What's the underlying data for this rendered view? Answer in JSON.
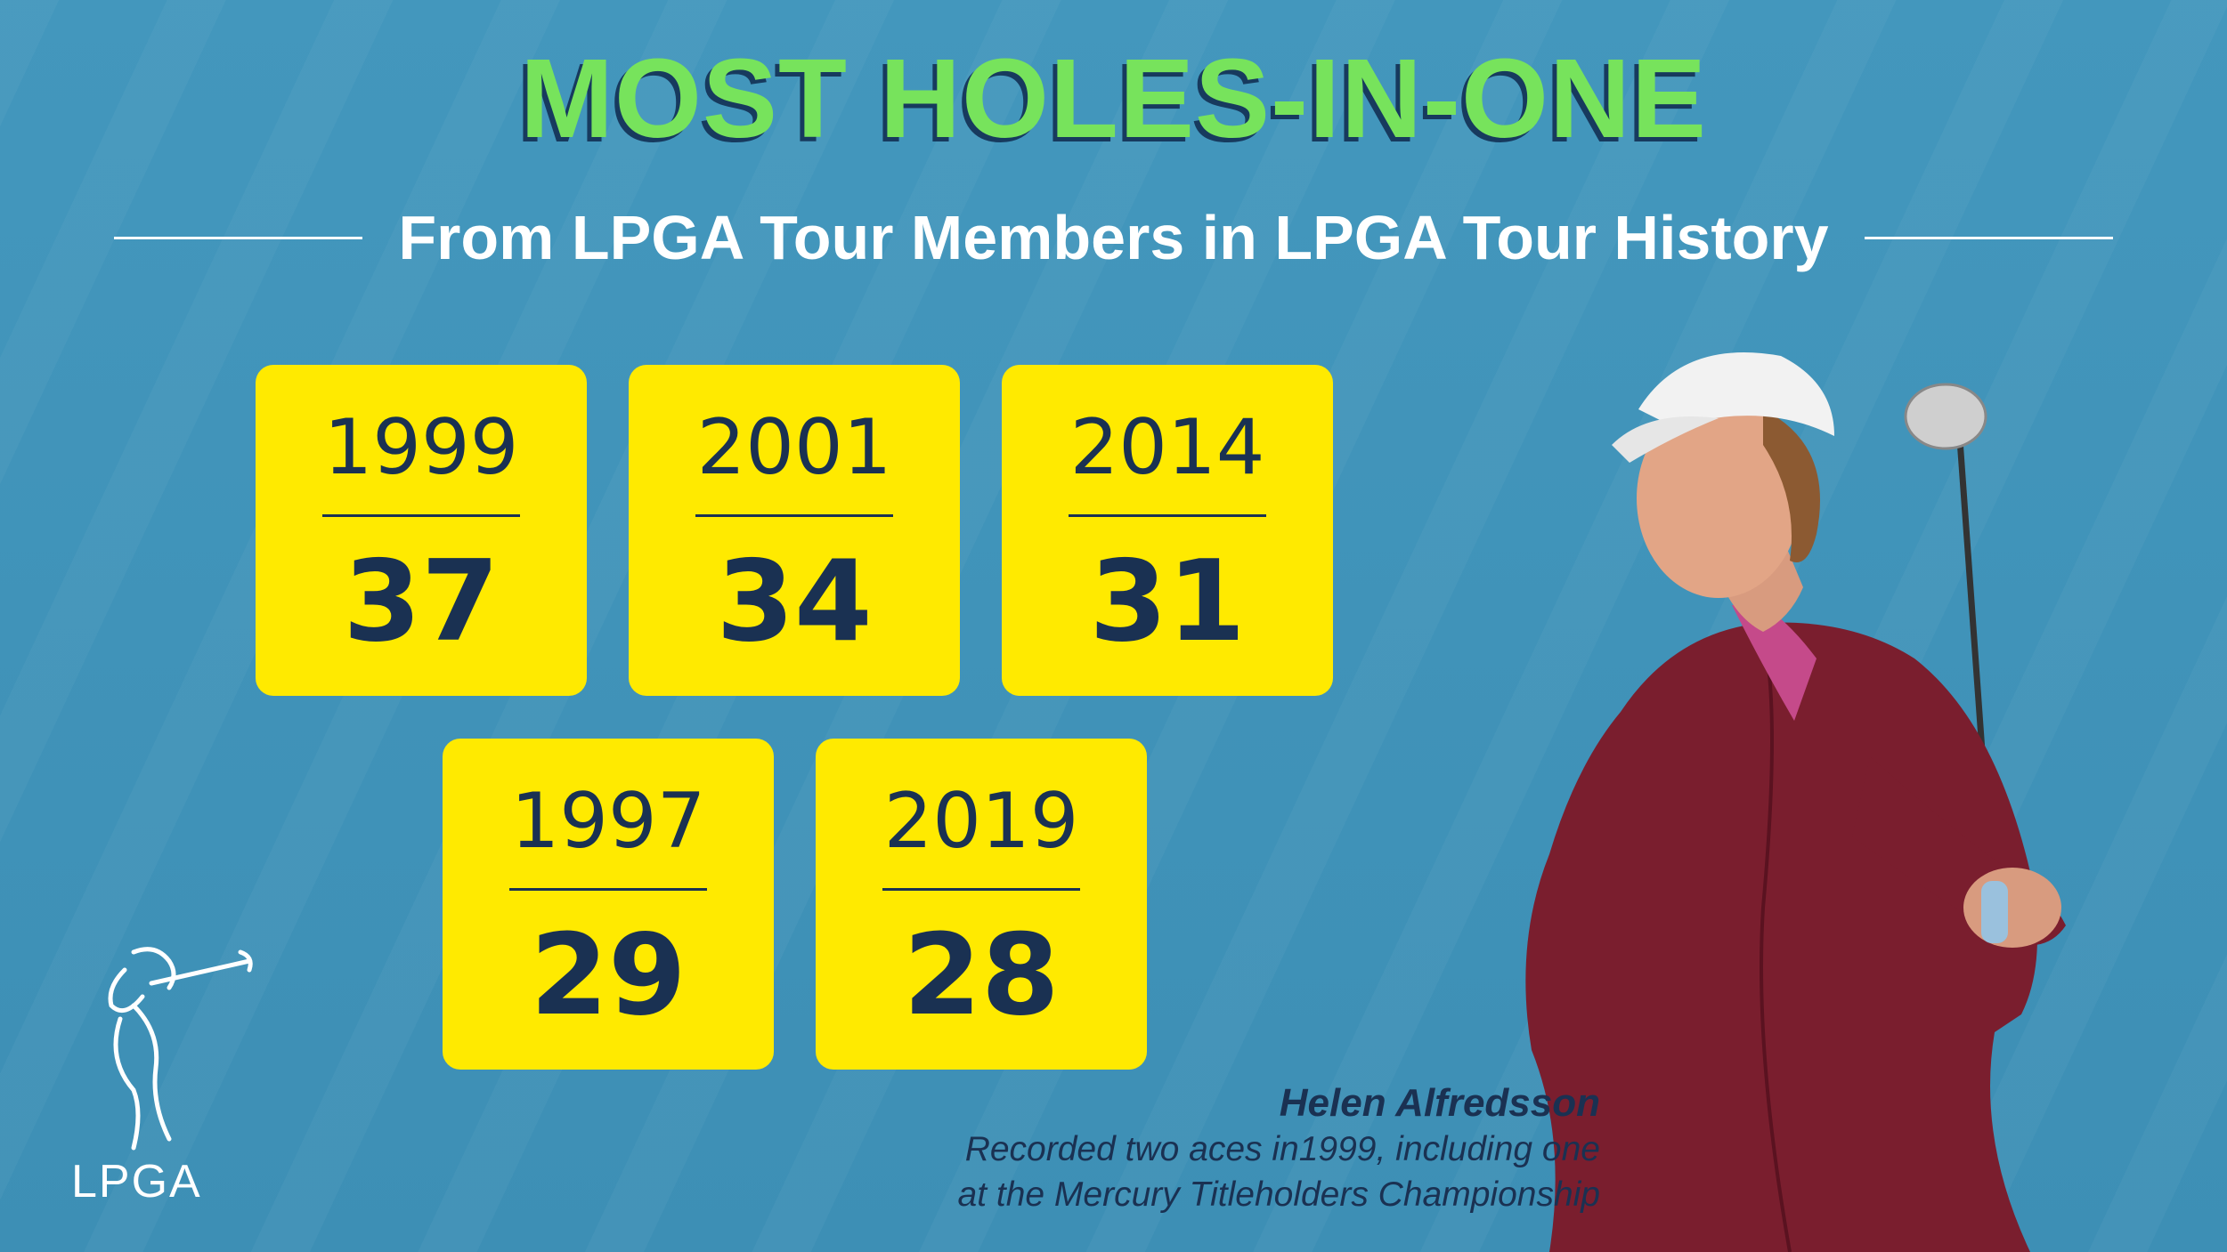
{
  "title": "MOST HOLES-IN-ONE",
  "subtitle": "From LPGA Tour Members in LPGA Tour History",
  "cards": [
    {
      "year": "1999",
      "count": "37"
    },
    {
      "year": "2001",
      "count": "34"
    },
    {
      "year": "2014",
      "count": "31"
    },
    {
      "year": "1997",
      "count": "29"
    },
    {
      "year": "2019",
      "count": "28"
    }
  ],
  "caption": {
    "name": "Helen Alfredsson",
    "line1": "Recorded two aces in1999, including one",
    "line2": "at the Mercury Titleholders Championship"
  },
  "logo": {
    "text": "LPGA"
  },
  "colors": {
    "background": "#3f93b9",
    "title": "#77e35c",
    "card": "#ffea00",
    "ink": "#1a3152"
  }
}
